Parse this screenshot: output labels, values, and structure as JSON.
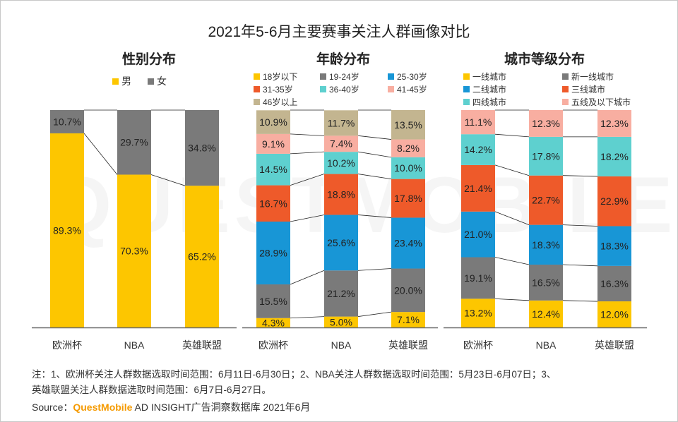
{
  "title": "2021年5-6月主要赛事关注人群画像对比",
  "watermark": "QUESTMOBILE",
  "colors": {
    "male": "#fdc600",
    "female": "#7a7a7a",
    "age": [
      "#fdc600",
      "#7a7a7a",
      "#1896d6",
      "#ee5a2a",
      "#5ed0cf",
      "#f8aea1",
      "#c3b590"
    ],
    "city": [
      "#fdc600",
      "#7a7a7a",
      "#1896d6",
      "#ee5a2a",
      "#5ed0cf",
      "#f8aea1"
    ],
    "axis": "#6a6a6a",
    "brand": "#f59a00"
  },
  "chart_data": [
    {
      "type": "bar",
      "stacked": true,
      "title": "性别分布",
      "categories": [
        "欧洲杯",
        "NBA",
        "英雄联盟"
      ],
      "ylim": [
        0,
        100
      ],
      "series": [
        {
          "name": "男",
          "values": [
            89.3,
            70.3,
            65.2
          ]
        },
        {
          "name": "女",
          "values": [
            10.7,
            29.7,
            34.8
          ]
        }
      ]
    },
    {
      "type": "bar",
      "stacked": true,
      "title": "年龄分布",
      "categories": [
        "欧洲杯",
        "NBA",
        "英雄联盟"
      ],
      "ylim": [
        0,
        100
      ],
      "series": [
        {
          "name": "18岁以下",
          "values": [
            4.3,
            5.0,
            7.1
          ]
        },
        {
          "name": "19-24岁",
          "values": [
            15.5,
            21.2,
            20.0
          ]
        },
        {
          "name": "25-30岁",
          "values": [
            28.9,
            25.6,
            23.4
          ]
        },
        {
          "name": "31-35岁",
          "values": [
            16.7,
            18.8,
            17.8
          ]
        },
        {
          "name": "36-40岁",
          "values": [
            14.5,
            10.2,
            10.0
          ]
        },
        {
          "name": "41-45岁",
          "values": [
            9.1,
            7.4,
            8.2
          ]
        },
        {
          "name": "46岁以上",
          "values": [
            10.9,
            11.7,
            13.5
          ]
        }
      ]
    },
    {
      "type": "bar",
      "stacked": true,
      "title": "城市等级分布",
      "categories": [
        "欧洲杯",
        "NBA",
        "英雄联盟"
      ],
      "ylim": [
        0,
        100
      ],
      "series": [
        {
          "name": "一线城市",
          "values": [
            13.2,
            12.4,
            12.0
          ]
        },
        {
          "name": "新一线城市",
          "values": [
            19.1,
            16.5,
            16.3
          ]
        },
        {
          "name": "二线城市",
          "values": [
            21.0,
            18.3,
            18.3
          ]
        },
        {
          "name": "三线城市",
          "values": [
            21.4,
            22.7,
            22.9
          ]
        },
        {
          "name": "四线城市",
          "values": [
            14.2,
            17.8,
            18.2
          ]
        },
        {
          "name": "五线及以下城市",
          "values": [
            11.1,
            12.3,
            12.3
          ]
        }
      ]
    }
  ],
  "notes": {
    "line1": "注：1、欧洲杯关注人群数据选取时间范围：6月11日-6月30日；2、NBA关注人群数据选取时间范围：5月23日-6月07日；3、",
    "line2": "英雄联盟关注人群数据选取时间范围：6月7日-6月27日。",
    "source_prefix": "Source：",
    "source_brand": "QuestMobile",
    "source_rest": " AD INSIGHT广告洞察数据库 2021年6月"
  }
}
